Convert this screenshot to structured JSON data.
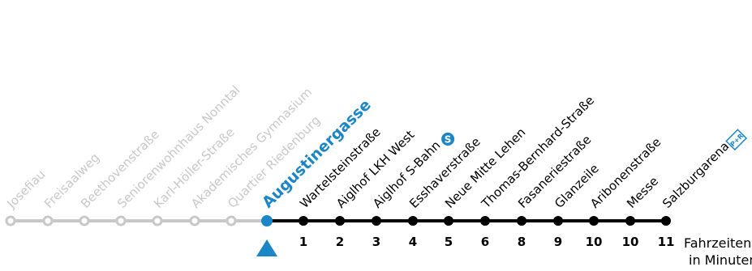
{
  "diagram": {
    "colors": {
      "past": "#c8c8c8",
      "current": "#1a86c8",
      "upcoming": "#000000"
    },
    "past_stops": [
      {
        "name": "Josefiau"
      },
      {
        "name": "Freisaalweg"
      },
      {
        "name": "Beethovenstraße"
      },
      {
        "name": "Seniorenwohnhaus Nonntal"
      },
      {
        "name": "Karl-Höller-Straße"
      },
      {
        "name": "Akademisches Gymnasium"
      },
      {
        "name": "Quartier Riedenburg"
      }
    ],
    "current_stop": {
      "name": "Augustinergasse"
    },
    "upcoming_stops": [
      {
        "name": "Wartelsteinstraße",
        "minutes": "1"
      },
      {
        "name": "Aiglhof LKH West",
        "minutes": "2"
      },
      {
        "name": "Aiglhof S-Bahn",
        "minutes": "3",
        "icon": "s-bahn-icon"
      },
      {
        "name": "Esshaverstraße",
        "minutes": "4"
      },
      {
        "name": "Neue Mitte Lehen",
        "minutes": "5"
      },
      {
        "name": "Thomas-Bernhard-Straße",
        "minutes": "6"
      },
      {
        "name": "Fasaneriestraße",
        "minutes": "8"
      },
      {
        "name": "Glanzeile",
        "minutes": "9"
      },
      {
        "name": "Aribonenstraße",
        "minutes": "10"
      },
      {
        "name": "Messe",
        "minutes": "10"
      },
      {
        "name": "Salzburgarena",
        "minutes": "11",
        "icon": "park-and-ride-icon"
      }
    ],
    "legend_line1": "Fahrzeiten",
    "legend_line2": "in Minuten",
    "park_ride_label": "P+R",
    "s_bahn_label": "S"
  }
}
